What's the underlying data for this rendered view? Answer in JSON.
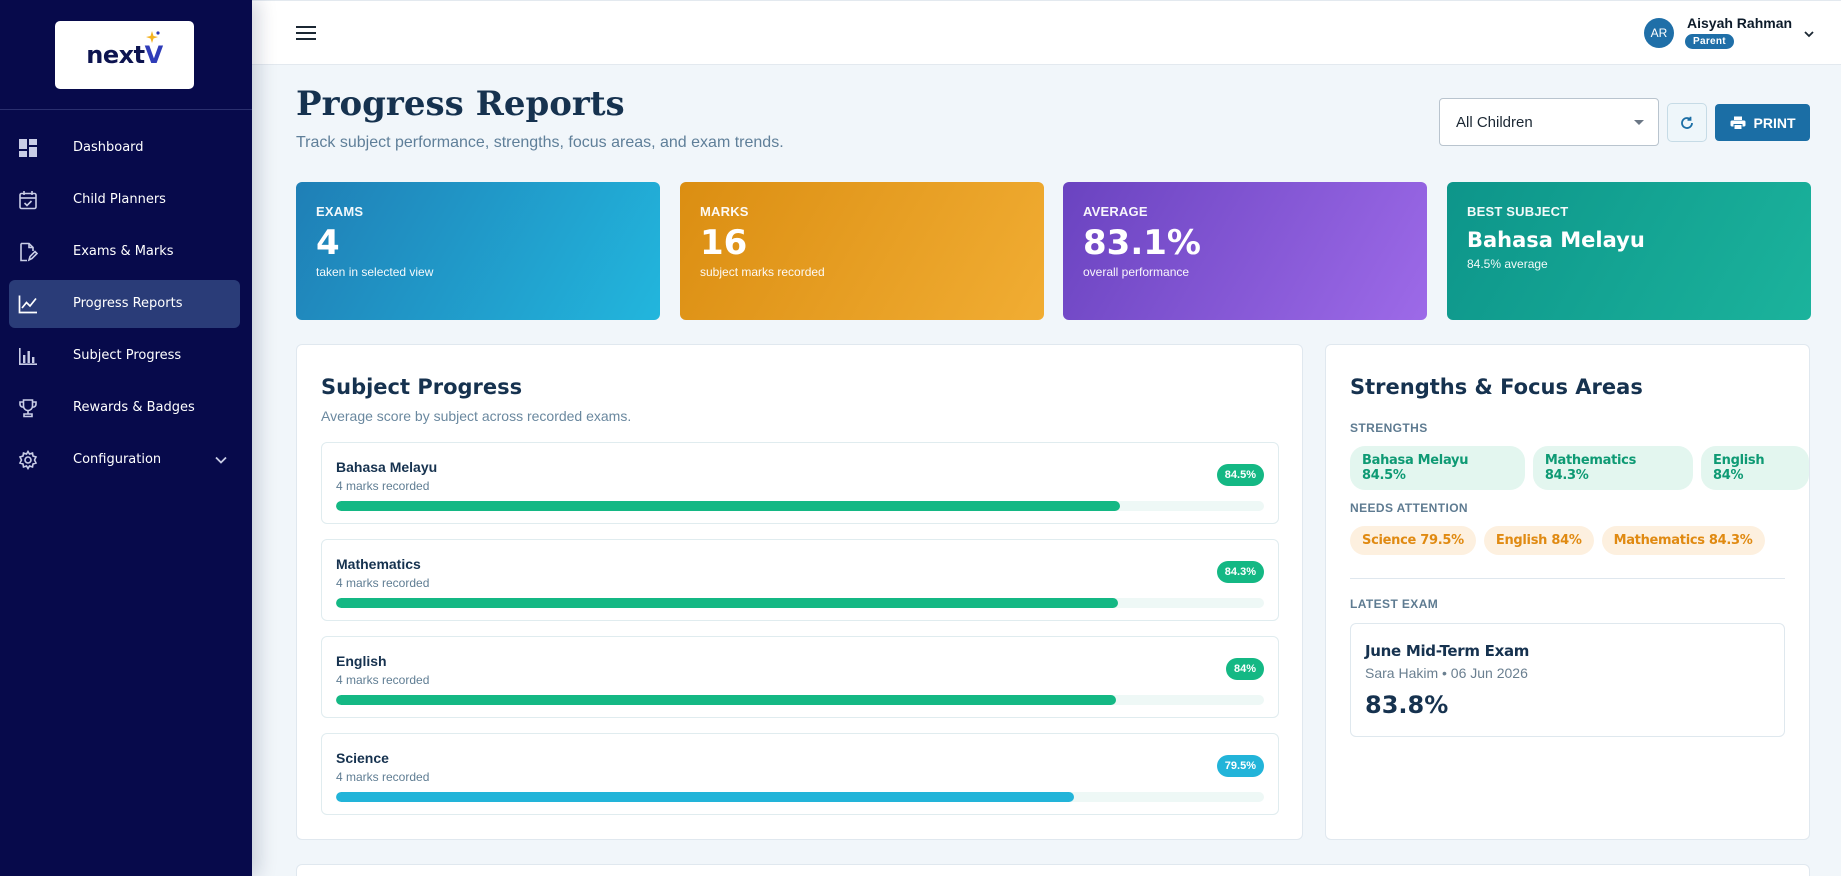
{
  "brand": {
    "logo_text": "next",
    "logo_accent": "V"
  },
  "sidebar": {
    "items": [
      {
        "label": "Dashboard",
        "icon": "dashboard-icon",
        "active": false
      },
      {
        "label": "Child Planners",
        "icon": "calendar-check-icon",
        "active": false
      },
      {
        "label": "Exams & Marks",
        "icon": "edit-document-icon",
        "active": false
      },
      {
        "label": "Progress Reports",
        "icon": "line-chart-icon",
        "active": true
      },
      {
        "label": "Subject Progress",
        "icon": "bar-chart-icon",
        "active": false
      },
      {
        "label": "Rewards & Badges",
        "icon": "trophy-icon",
        "active": false
      },
      {
        "label": "Configuration",
        "icon": "gear-icon",
        "active": false
      }
    ]
  },
  "user": {
    "initials": "AR",
    "name": "Aisyah Rahman",
    "role": "Parent"
  },
  "header": {
    "title": "Progress Reports",
    "subtitle": "Track subject performance, strengths, focus areas, and exam trends.",
    "child_select": "All Children",
    "print_label": "PRINT"
  },
  "stats": {
    "exams": {
      "label": "EXAMS",
      "value": "4",
      "note": "taken in selected view"
    },
    "marks": {
      "label": "MARKS",
      "value": "16",
      "note": "subject marks recorded"
    },
    "average": {
      "label": "AVERAGE",
      "value": "83.1%",
      "note": "overall performance"
    },
    "best": {
      "label": "BEST SUBJECT",
      "value": "Bahasa Melayu",
      "note": "84.5% average"
    }
  },
  "subject_progress": {
    "title": "Subject Progress",
    "subtitle": "Average score by subject across recorded exams.",
    "subjects": [
      {
        "name": "Bahasa Melayu",
        "note": "4 marks recorded",
        "badge": "84.5%",
        "percent": 84.5,
        "color": "#14b884"
      },
      {
        "name": "Mathematics",
        "note": "4 marks recorded",
        "badge": "84.3%",
        "percent": 84.3,
        "color": "#14b884"
      },
      {
        "name": "English",
        "note": "4 marks recorded",
        "badge": "84%",
        "percent": 84,
        "color": "#14b884"
      },
      {
        "name": "Science",
        "note": "4 marks recorded",
        "badge": "79.5%",
        "percent": 79.5,
        "color": "#22b4d9"
      }
    ]
  },
  "strengths": {
    "title": "Strengths & Focus Areas",
    "strengths_label": "STRENGTHS",
    "strengths": [
      "Bahasa Melayu 84.5%",
      "Mathematics 84.3%",
      "English 84%"
    ],
    "attention_label": "NEEDS ATTENTION",
    "attention": [
      "Science 79.5%",
      "English 84%",
      "Mathematics 84.3%"
    ],
    "latest_label": "LATEST EXAM",
    "latest": {
      "title": "June Mid-Term Exam",
      "meta": "Sara Hakim • 06 Jun 2026",
      "score": "83.8%"
    }
  }
}
